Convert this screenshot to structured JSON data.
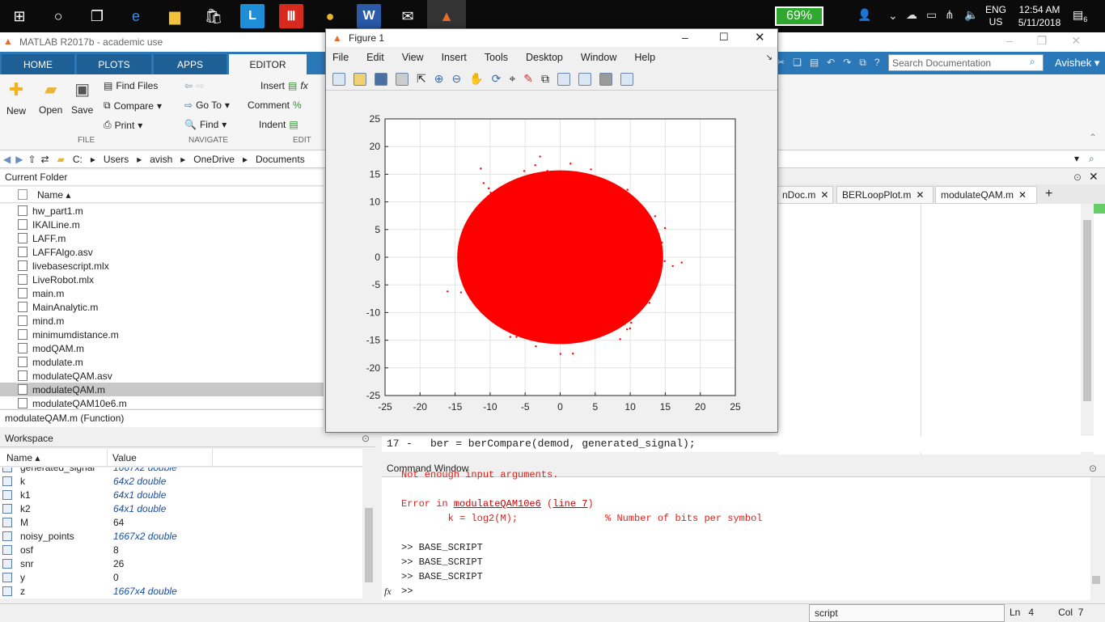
{
  "taskbar": {
    "battery": "69%",
    "lang": "ENG",
    "region": "US",
    "time": "12:54 AM",
    "date": "5/11/2018",
    "notif": "6"
  },
  "matlab": {
    "title": "MATLAB R2017b - academic use",
    "tabs": [
      "HOME",
      "PLOTS",
      "APPS",
      "EDITOR"
    ],
    "ribbon": {
      "new": "New",
      "open": "Open",
      "save": "Save",
      "find_files": "Find Files",
      "compare": "Compare",
      "print": "Print",
      "goto": "Go To",
      "find": "Find",
      "insert": "Insert",
      "comment": "Comment",
      "indent": "Indent",
      "group_file": "FILE",
      "group_navigate": "NAVIGATE",
      "group_edit": "EDIT",
      "search_placeholder": "Search Documentation",
      "user": "Avishek"
    },
    "path": [
      "C:",
      "Users",
      "avish",
      "OneDrive",
      "Documents"
    ],
    "current_folder": {
      "header": "Current Folder",
      "col_name": "Name",
      "files": [
        "hw_part1.m",
        "IKAILine.m",
        "LAFF.m",
        "LAFFAlgo.asv",
        "livebasescript.mlx",
        "LiveRobot.mlx",
        "main.m",
        "MainAnalytic.m",
        "mind.m",
        "minimumdistance.m",
        "modQAM.m",
        "modulate.m",
        "modulateQAM.asv",
        "modulateQAM.m",
        "modulateQAM10e6.m"
      ],
      "selected": "modulateQAM.m",
      "detail": "modulateQAM.m  (Function)"
    },
    "workspace": {
      "header": "Workspace",
      "col_name": "Name",
      "col_value": "Value",
      "vars": [
        {
          "name": "generated_signal",
          "value": "1667x2 double",
          "italic": true
        },
        {
          "name": "k",
          "value": "64x2 double",
          "italic": true
        },
        {
          "name": "k1",
          "value": "64x1 double",
          "italic": true
        },
        {
          "name": "k2",
          "value": "64x1 double",
          "italic": true
        },
        {
          "name": "M",
          "value": "64",
          "italic": false
        },
        {
          "name": "noisy_points",
          "value": "1667x2 double",
          "italic": true
        },
        {
          "name": "osf",
          "value": "8",
          "italic": false
        },
        {
          "name": "snr",
          "value": "26",
          "italic": false
        },
        {
          "name": "y",
          "value": "0",
          "italic": false
        },
        {
          "name": "z",
          "value": "1667x4 double",
          "italic": true
        }
      ]
    },
    "editor": {
      "tabs": [
        "nDoc.m",
        "BERLoopPlot.m",
        "modulateQAM.m"
      ],
      "line_no": "17",
      "line_code": "ber = berCompare(demod, generated_signal);"
    },
    "command_window": {
      "header": "Command Window",
      "lines": [
        {
          "text": "Not enough input arguments.",
          "cls": "err"
        },
        {
          "text": "",
          "cls": ""
        },
        {
          "text": "Error in modulateQAM10e6 (line 7)",
          "cls": "err"
        },
        {
          "text": "        k = log2(M);               % Number of bits per symbol",
          "cls": "err"
        },
        {
          "text": "",
          "cls": ""
        },
        {
          "text": ">> BASE_SCRIPT",
          "cls": ""
        },
        {
          "text": ">> BASE_SCRIPT",
          "cls": ""
        },
        {
          "text": ">> BASE_SCRIPT",
          "cls": ""
        },
        {
          "text": ">> ",
          "cls": ""
        }
      ]
    },
    "status": {
      "mode": "script",
      "ln_label": "Ln",
      "ln": "4",
      "col_label": "Col",
      "col": "7"
    }
  },
  "figure": {
    "title": "Figure 1",
    "menu": [
      "File",
      "Edit",
      "View",
      "Insert",
      "Tools",
      "Desktop",
      "Window",
      "Help"
    ]
  },
  "chart_data": {
    "type": "scatter",
    "title": "",
    "xlabel": "",
    "ylabel": "",
    "xlim": [
      -25,
      25
    ],
    "ylim": [
      -25,
      25
    ],
    "xticks": [
      -25,
      -20,
      -15,
      -10,
      -5,
      0,
      5,
      10,
      15,
      20,
      25
    ],
    "yticks": [
      -25,
      -20,
      -15,
      -10,
      -5,
      0,
      5,
      10,
      15,
      20,
      25
    ],
    "grid": true,
    "series": [
      {
        "name": "",
        "color": "#ff0000",
        "center": [
          0,
          0
        ],
        "spread_std": 5.5,
        "approx_radius": 17,
        "points": "dense cloud (~1e6 noisy QAM points)"
      }
    ]
  }
}
